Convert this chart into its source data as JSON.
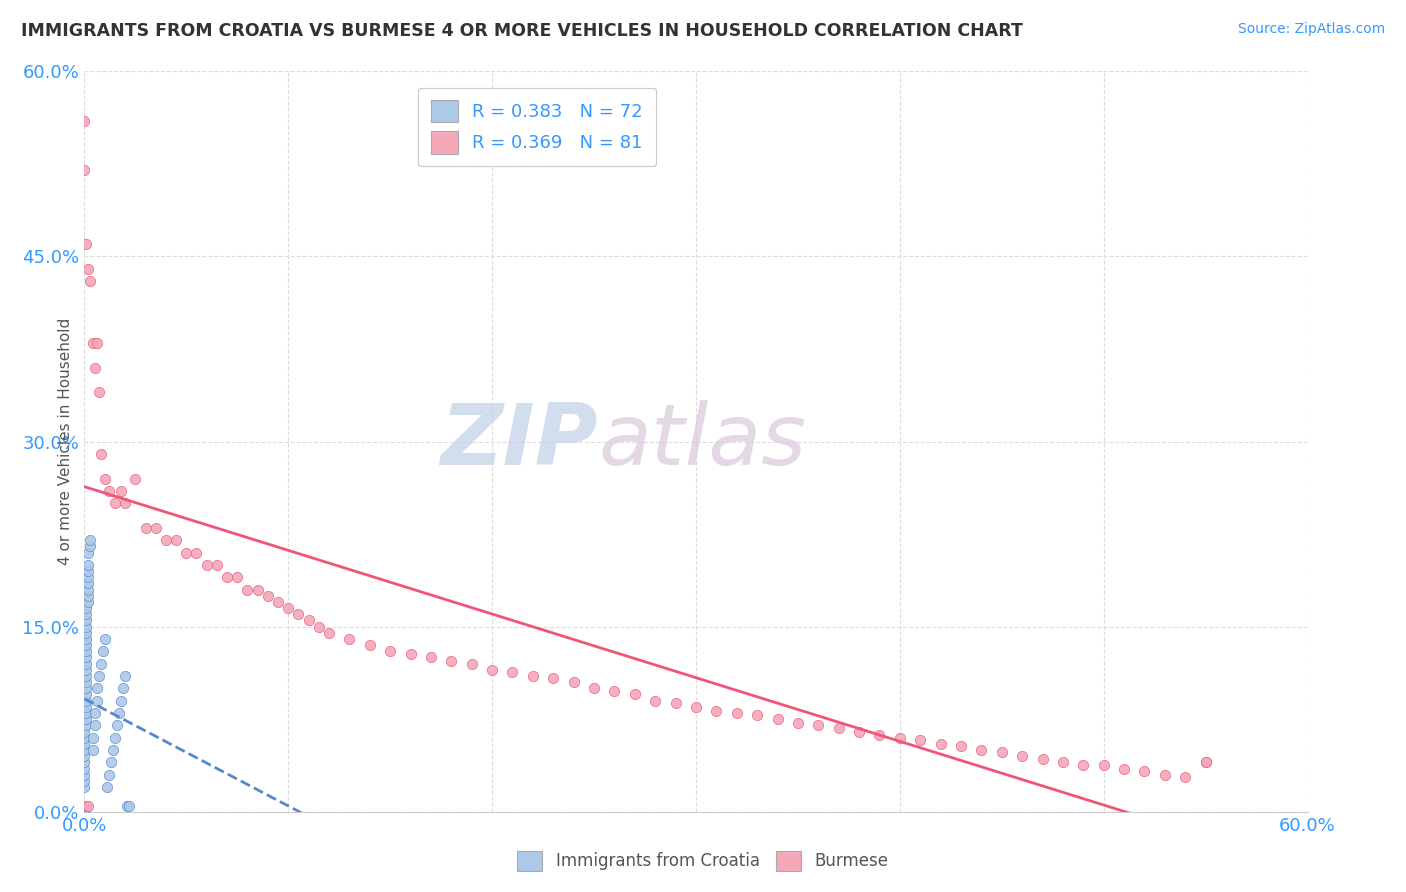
{
  "title": "IMMIGRANTS FROM CROATIA VS BURMESE 4 OR MORE VEHICLES IN HOUSEHOLD CORRELATION CHART",
  "source_text": "Source: ZipAtlas.com",
  "yaxis_label": "4 or more Vehicles in Household",
  "legend_label1": "Immigrants from Croatia",
  "legend_label2": "Burmese",
  "r1": 0.383,
  "n1": 72,
  "r2": 0.369,
  "n2": 81,
  "color1": "#adc8e8",
  "color2": "#f4a8b8",
  "line_color1": "#5588cc",
  "line_color2": "#ee5577",
  "title_color": "#333333",
  "axis_label_color": "#555555",
  "tick_color": "#3399ff",
  "watermark_color_zip": "#c8d8ee",
  "watermark_color_atlas": "#d8c8d8",
  "background_color": "#ffffff",
  "grid_color": "#dddddd",
  "xlim": [
    0.0,
    0.6
  ],
  "ylim": [
    0.0,
    0.6
  ],
  "croatia_x": [
    0.0,
    0.0,
    0.0,
    0.0,
    0.0,
    0.0,
    0.0,
    0.0,
    0.0,
    0.0,
    0.0,
    0.0,
    0.0,
    0.0,
    0.0,
    0.0,
    0.0,
    0.0,
    0.0,
    0.0,
    0.001,
    0.001,
    0.001,
    0.001,
    0.001,
    0.001,
    0.001,
    0.001,
    0.001,
    0.001,
    0.001,
    0.001,
    0.001,
    0.001,
    0.001,
    0.001,
    0.001,
    0.001,
    0.001,
    0.001,
    0.002,
    0.002,
    0.002,
    0.002,
    0.002,
    0.002,
    0.002,
    0.002,
    0.003,
    0.003,
    0.004,
    0.004,
    0.005,
    0.005,
    0.006,
    0.006,
    0.007,
    0.008,
    0.009,
    0.01,
    0.011,
    0.012,
    0.013,
    0.014,
    0.015,
    0.016,
    0.017,
    0.018,
    0.019,
    0.02,
    0.021,
    0.022
  ],
  "croatia_y": [
    0.0,
    0.0,
    0.0,
    0.0,
    0.0,
    0.0,
    0.0,
    0.0,
    0.0,
    0.0,
    0.02,
    0.025,
    0.03,
    0.035,
    0.04,
    0.045,
    0.05,
    0.055,
    0.06,
    0.065,
    0.07,
    0.075,
    0.08,
    0.085,
    0.09,
    0.095,
    0.1,
    0.105,
    0.11,
    0.115,
    0.12,
    0.125,
    0.13,
    0.135,
    0.14,
    0.145,
    0.15,
    0.155,
    0.16,
    0.165,
    0.17,
    0.175,
    0.18,
    0.185,
    0.19,
    0.195,
    0.2,
    0.21,
    0.215,
    0.22,
    0.05,
    0.06,
    0.07,
    0.08,
    0.09,
    0.1,
    0.11,
    0.12,
    0.13,
    0.14,
    0.02,
    0.03,
    0.04,
    0.05,
    0.06,
    0.07,
    0.08,
    0.09,
    0.1,
    0.11,
    0.005,
    0.005
  ],
  "burmese_x": [
    0.0,
    0.0,
    0.001,
    0.002,
    0.003,
    0.004,
    0.005,
    0.006,
    0.007,
    0.008,
    0.01,
    0.012,
    0.015,
    0.018,
    0.02,
    0.025,
    0.03,
    0.035,
    0.04,
    0.045,
    0.05,
    0.055,
    0.06,
    0.065,
    0.07,
    0.075,
    0.08,
    0.085,
    0.09,
    0.095,
    0.1,
    0.105,
    0.11,
    0.115,
    0.12,
    0.13,
    0.14,
    0.15,
    0.16,
    0.17,
    0.18,
    0.19,
    0.2,
    0.21,
    0.22,
    0.23,
    0.24,
    0.25,
    0.26,
    0.27,
    0.28,
    0.29,
    0.3,
    0.31,
    0.32,
    0.33,
    0.34,
    0.35,
    0.36,
    0.37,
    0.38,
    0.39,
    0.4,
    0.41,
    0.42,
    0.43,
    0.44,
    0.45,
    0.46,
    0.47,
    0.48,
    0.49,
    0.5,
    0.51,
    0.52,
    0.53,
    0.54,
    0.55,
    0.001,
    0.002,
    0.55
  ],
  "burmese_y": [
    0.56,
    0.52,
    0.46,
    0.44,
    0.43,
    0.38,
    0.36,
    0.38,
    0.34,
    0.29,
    0.27,
    0.26,
    0.25,
    0.26,
    0.25,
    0.27,
    0.23,
    0.23,
    0.22,
    0.22,
    0.21,
    0.21,
    0.2,
    0.2,
    0.19,
    0.19,
    0.18,
    0.18,
    0.175,
    0.17,
    0.165,
    0.16,
    0.155,
    0.15,
    0.145,
    0.14,
    0.135,
    0.13,
    0.128,
    0.125,
    0.122,
    0.12,
    0.115,
    0.113,
    0.11,
    0.108,
    0.105,
    0.1,
    0.098,
    0.095,
    0.09,
    0.088,
    0.085,
    0.082,
    0.08,
    0.078,
    0.075,
    0.072,
    0.07,
    0.068,
    0.065,
    0.062,
    0.06,
    0.058,
    0.055,
    0.053,
    0.05,
    0.048,
    0.045,
    0.043,
    0.04,
    0.038,
    0.038,
    0.035,
    0.033,
    0.03,
    0.028,
    0.04,
    0.005,
    0.005,
    0.04
  ]
}
